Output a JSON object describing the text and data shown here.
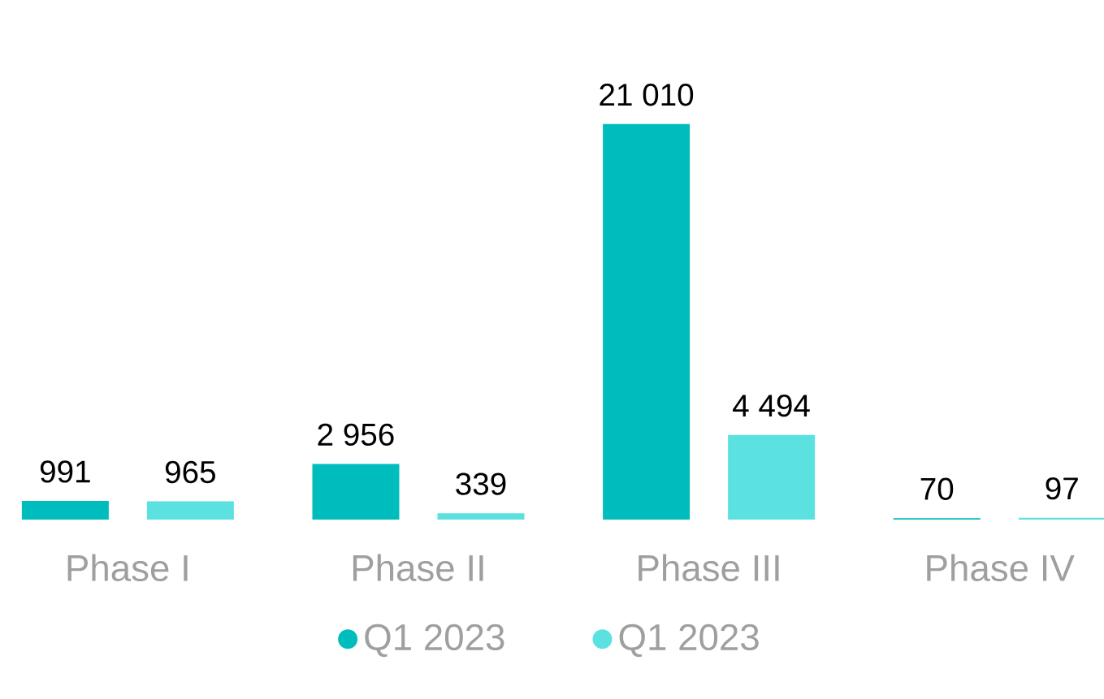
{
  "chart_data": {
    "type": "bar",
    "categories": [
      "Phase I",
      "Phase II",
      "Phase III",
      "Phase IV"
    ],
    "series": [
      {
        "name": "Q1 2023",
        "color": "#00bdbd",
        "values": [
          991,
          2956,
          21010,
          70
        ],
        "value_labels": [
          "991",
          "2 956",
          "21 010",
          "70"
        ]
      },
      {
        "name": "Q1 2023",
        "color": "#5ce1e1",
        "values": [
          965,
          339,
          4494,
          97
        ],
        "value_labels": [
          "965",
          "339",
          "4 494",
          "97"
        ]
      }
    ],
    "legend": "bottom"
  }
}
